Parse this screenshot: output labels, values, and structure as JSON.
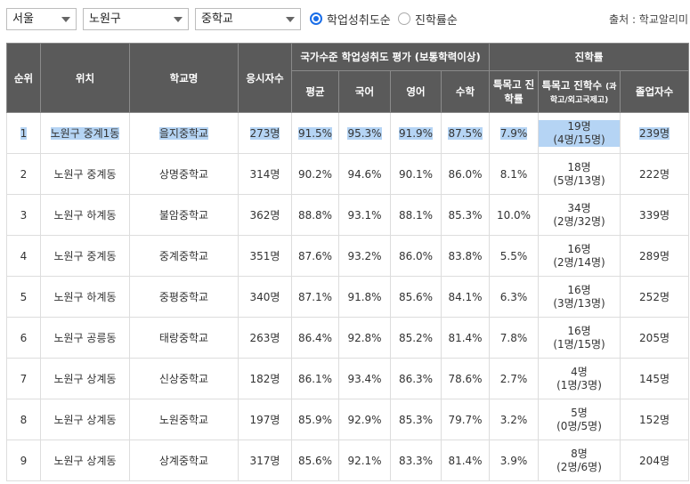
{
  "filters": {
    "region": "서울",
    "district": "노원구",
    "school_type": "중학교"
  },
  "sort": {
    "option1": "학업성취도순",
    "option2": "진학률순",
    "selected": "학업성취도순"
  },
  "source_label": "출처 : 학교알리미",
  "headers": {
    "rank": "순위",
    "location": "위치",
    "school": "학교명",
    "test_takers": "응시자수",
    "national_group": "국가수준 학업성취도 평가 (보통학력이상)",
    "avg": "평균",
    "korean": "국어",
    "english": "영어",
    "math": "수학",
    "advancement_group": "진학률",
    "special_rate": "특목고 진학률",
    "special_count": "특목고 진학수",
    "special_count_sub": "(과학고/외고국제고)",
    "graduates": "졸업자수"
  },
  "rows": [
    {
      "rank": "1",
      "location": "노원구 중계1동",
      "school": "을지중학교",
      "takers": "273명",
      "avg": "91.5%",
      "kor": "95.3%",
      "eng": "91.9%",
      "math": "87.5%",
      "rate": "7.9%",
      "count": "19명",
      "count_detail": "(4명/15명)",
      "grads": "239명"
    },
    {
      "rank": "2",
      "location": "노원구 중계동",
      "school": "상명중학교",
      "takers": "314명",
      "avg": "90.2%",
      "kor": "94.6%",
      "eng": "90.1%",
      "math": "86.0%",
      "rate": "8.1%",
      "count": "18명",
      "count_detail": "(5명/13명)",
      "grads": "222명"
    },
    {
      "rank": "3",
      "location": "노원구 하계동",
      "school": "불암중학교",
      "takers": "362명",
      "avg": "88.8%",
      "kor": "93.1%",
      "eng": "88.1%",
      "math": "85.3%",
      "rate": "10.0%",
      "count": "34명",
      "count_detail": "(2명/32명)",
      "grads": "339명"
    },
    {
      "rank": "4",
      "location": "노원구 중계동",
      "school": "중계중학교",
      "takers": "351명",
      "avg": "87.6%",
      "kor": "93.2%",
      "eng": "86.0%",
      "math": "83.8%",
      "rate": "5.5%",
      "count": "16명",
      "count_detail": "(2명/14명)",
      "grads": "289명"
    },
    {
      "rank": "5",
      "location": "노원구 하계동",
      "school": "중평중학교",
      "takers": "340명",
      "avg": "87.1%",
      "kor": "91.8%",
      "eng": "85.6%",
      "math": "84.1%",
      "rate": "6.3%",
      "count": "16명",
      "count_detail": "(3명/13명)",
      "grads": "252명"
    },
    {
      "rank": "6",
      "location": "노원구 공릉동",
      "school": "태랑중학교",
      "takers": "263명",
      "avg": "86.4%",
      "kor": "92.8%",
      "eng": "85.2%",
      "math": "81.4%",
      "rate": "7.8%",
      "count": "16명",
      "count_detail": "(1명/15명)",
      "grads": "205명"
    },
    {
      "rank": "7",
      "location": "노원구 상계동",
      "school": "신상중학교",
      "takers": "182명",
      "avg": "86.1%",
      "kor": "93.4%",
      "eng": "86.3%",
      "math": "78.6%",
      "rate": "2.7%",
      "count": "4명",
      "count_detail": "(1명/3명)",
      "grads": "145명"
    },
    {
      "rank": "8",
      "location": "노원구 상계동",
      "school": "노원중학교",
      "takers": "197명",
      "avg": "85.9%",
      "kor": "92.9%",
      "eng": "85.3%",
      "math": "79.7%",
      "rate": "3.2%",
      "count": "5명",
      "count_detail": "(0명/5명)",
      "grads": "152명"
    },
    {
      "rank": "9",
      "location": "노원구 상계동",
      "school": "상계중학교",
      "takers": "317명",
      "avg": "85.6%",
      "kor": "92.1%",
      "eng": "83.3%",
      "math": "81.4%",
      "rate": "3.9%",
      "count": "8명",
      "count_detail": "(2명/6명)",
      "grads": "204명"
    }
  ],
  "colors": {
    "header_bg": "#5a5a5a",
    "selection_highlight": "#b5d4f4",
    "radio_accent": "#1a6ee8"
  }
}
